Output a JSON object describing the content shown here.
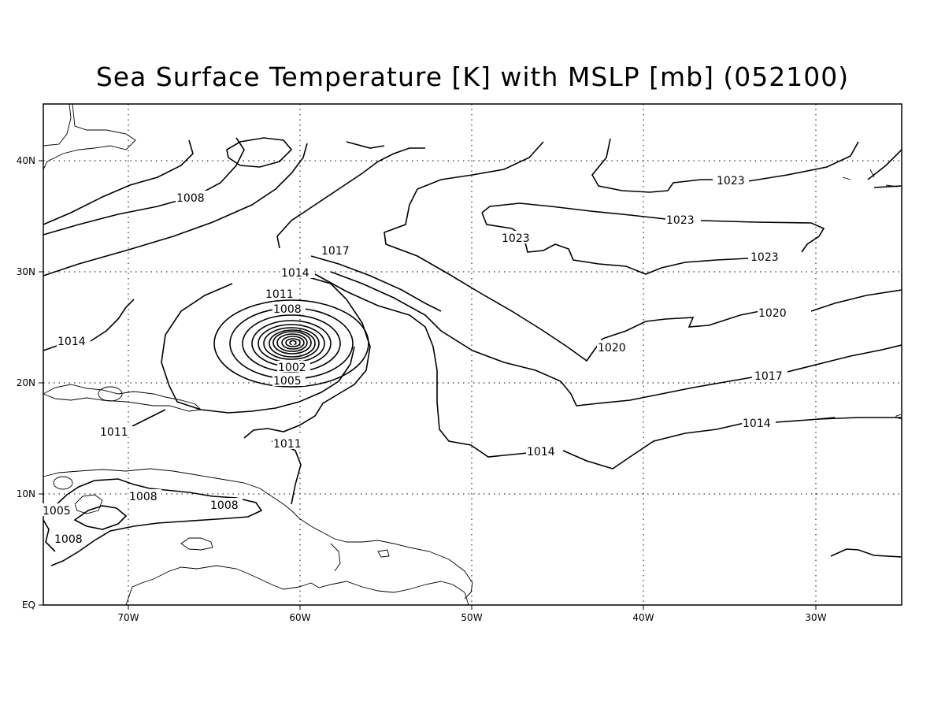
{
  "title": "Sea Surface Temperature [K] with MSLP [mb] (052100)",
  "axes": {
    "x_ticks": [
      "70W",
      "60W",
      "50W",
      "40W",
      "30W"
    ],
    "y_ticks": [
      "EQ",
      "10N",
      "20N",
      "30N",
      "40N"
    ]
  },
  "contour_labels": [
    "1008",
    "1017",
    "1014",
    "1011",
    "1008",
    "1005",
    "1002",
    "1014",
    "1011",
    "1011",
    "1008",
    "1008",
    "1005",
    "1008",
    "1014",
    "1017",
    "1020",
    "1020",
    "1023",
    "1023",
    "1023",
    "1023"
  ],
  "colors": {
    "line": "#000000",
    "background": "#ffffff"
  }
}
